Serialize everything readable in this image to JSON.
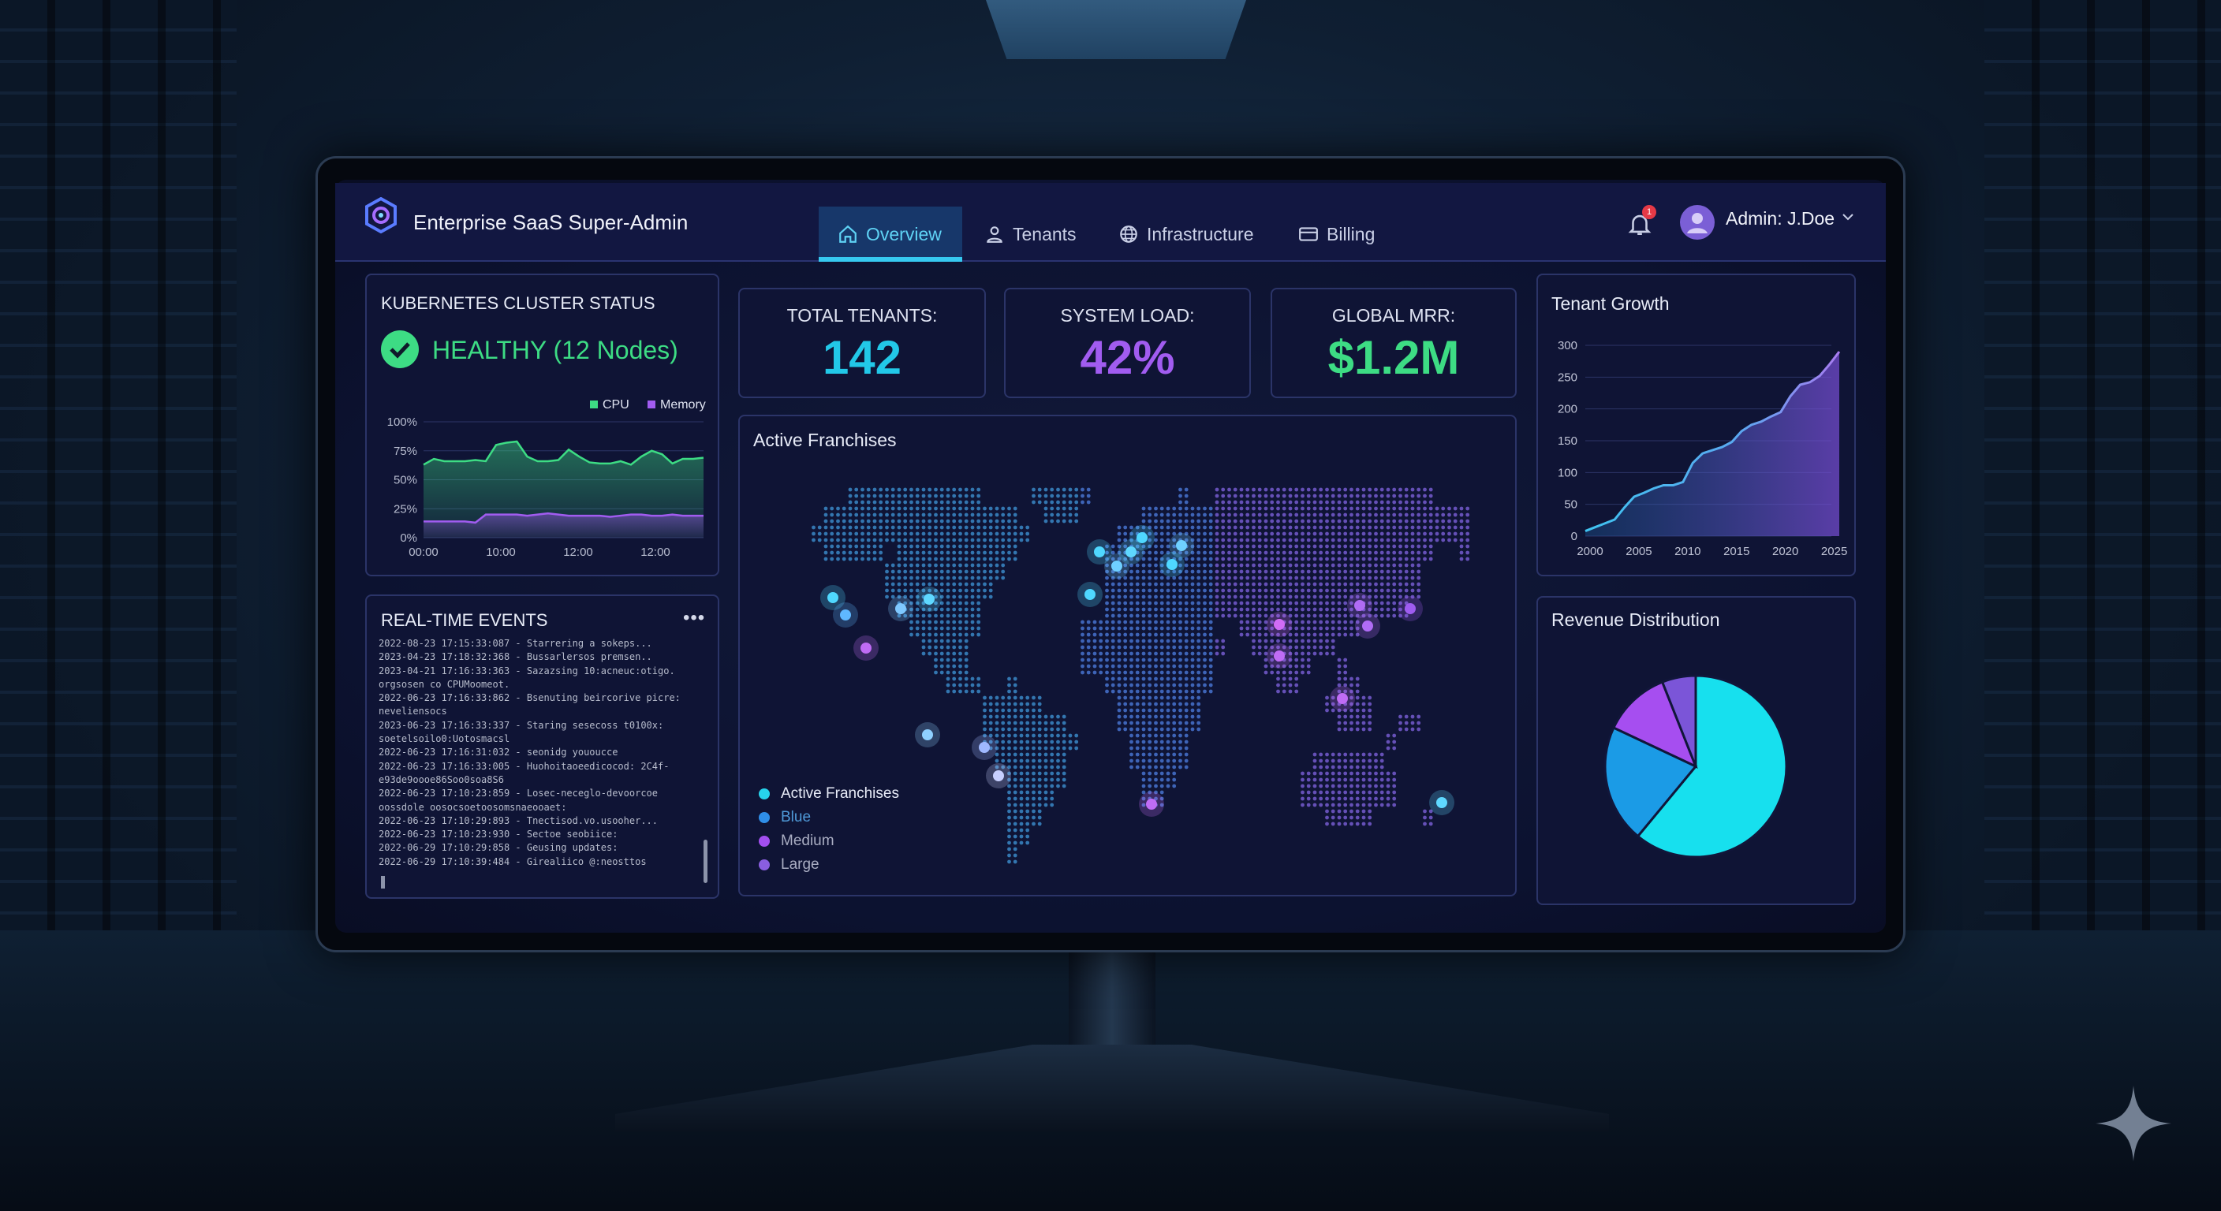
{
  "app": {
    "title": "Enterprise SaaS Super-Admin",
    "logo_icon": "gear-hexagon-icon"
  },
  "nav": {
    "tabs": [
      {
        "label": "Overview",
        "icon": "home-icon",
        "active": true
      },
      {
        "label": "Tenants",
        "icon": "user-icon",
        "active": false
      },
      {
        "label": "Infrastructure",
        "icon": "globe-icon",
        "active": false
      },
      {
        "label": "Billing",
        "icon": "credit-card-icon",
        "active": false
      }
    ]
  },
  "user": {
    "label": "Admin: J.Doe",
    "notification_count": "1"
  },
  "cluster": {
    "title": "KUBERNETES CLUSTER STATUS",
    "status": "HEALTHY (12 Nodes)",
    "status_color": "#3ddc84"
  },
  "kpis": [
    {
      "label": "TOTAL TENANTS:",
      "value": "142",
      "color": "#22c8e8"
    },
    {
      "label": "SYSTEM LOAD:",
      "value": "42%",
      "color": "#a15cf0"
    },
    {
      "label": "GLOBAL MRR:",
      "value": "$1.2M",
      "color": "#3ddc84"
    }
  ],
  "map": {
    "title": "Active Franchises",
    "legend": [
      {
        "label": "Active Franchises",
        "color": "#27d3ec"
      },
      {
        "label": "Blue",
        "color": "#2f8ee8"
      },
      {
        "label": "Medium",
        "color": "#a24ff0"
      },
      {
        "label": "Large",
        "color": "#8a5ee0"
      }
    ]
  },
  "events": {
    "title": "REAL-TIME EVENTS",
    "menu_icon": "more-horizontal-icon",
    "lines": [
      "2022-08-23 17:15:33:087 - Starrering a sokeps...",
      "2023-04-23 17:18:32:368 - Bussarlersos premsen..",
      "2023-04-21 17:16:33:363 - Sazazsing 10:acneuc:otigo.",
      "orgsosen co CPUMoomeot.",
      "2022-06-23 17:16:33:862 - Bsenuting beircorive picre:",
      "neveliensocs",
      "2023-06-23 17:16:33:337 - Staring sesecoss t0100x:",
      "soetelsoilo0:Uotosmacsl",
      "2022-06-23 17:16:31:032 - seonidg yououcce",
      "2022-06-23 17:16:33:005 - Huohoitaoeedicocod: 2C4f-",
      "e93de9oooe86Soo0soa8S6",
      "2022-06-23 17:10:23:859 - Losec-neceglo-devoorcoe",
      "oossdole oosocsoetoosomsnaeooaet:",
      "2022-06-23 17:10:29:893 - Tnectisod.vo.usooher...",
      "2022-06-23 17:10:23:930 - Sectoe seobiice:",
      "2022-06-29 17:10:29:858 - Geusing updates:",
      "2022-06-29 17:10:39:484 - Girealiico @:neosttos"
    ]
  },
  "chart_data": [
    {
      "type": "area",
      "title": "",
      "x_ticks": [
        "00:00",
        "10:00",
        "12:00",
        "12:00"
      ],
      "y_ticks": [
        "100%",
        "75%",
        "50%",
        "25%",
        "0%"
      ],
      "ylim": [
        0,
        100
      ],
      "legend_position": "top-right",
      "grid": true,
      "series": [
        {
          "name": "CPU",
          "color": "#3ddc84",
          "values": [
            63,
            68,
            66,
            66,
            66,
            67,
            66,
            80,
            82,
            83,
            70,
            66,
            66,
            67,
            76,
            70,
            65,
            64,
            64,
            66,
            63,
            70,
            75,
            72,
            64,
            68,
            68,
            69
          ]
        },
        {
          "name": "Memory",
          "color": "#a15cf0",
          "values": [
            14,
            14,
            14,
            14,
            14,
            13,
            20,
            20,
            20,
            20,
            19,
            20,
            21,
            20,
            19,
            19,
            19,
            19,
            18,
            19,
            20,
            20,
            19,
            19,
            20,
            19,
            19,
            19
          ]
        }
      ]
    },
    {
      "type": "area",
      "title": "Tenant Growth",
      "x": [
        2000,
        2001,
        2002,
        2003,
        2004,
        2005,
        2006,
        2007,
        2008,
        2009,
        2010,
        2011,
        2012,
        2013,
        2014,
        2015,
        2016,
        2017,
        2018,
        2019,
        2020,
        2021,
        2022,
        2023,
        2024,
        2025,
        2026
      ],
      "values": [
        8,
        14,
        20,
        26,
        45,
        62,
        68,
        75,
        80,
        80,
        85,
        115,
        130,
        135,
        140,
        148,
        165,
        175,
        180,
        188,
        195,
        220,
        238,
        242,
        252,
        270,
        290
      ],
      "x_ticks": [
        2000,
        2005,
        2010,
        2015,
        2020,
        2025
      ],
      "y_ticks": [
        0,
        50,
        100,
        150,
        200,
        250,
        300
      ],
      "ylim": [
        0,
        300
      ],
      "grid": true
    },
    {
      "type": "pie",
      "title": "Revenue Distribution",
      "values": [
        61,
        21,
        12,
        6
      ],
      "colors": [
        "#17e0ee",
        "#1b9be6",
        "#a64ef0",
        "#7b55d8"
      ]
    }
  ]
}
